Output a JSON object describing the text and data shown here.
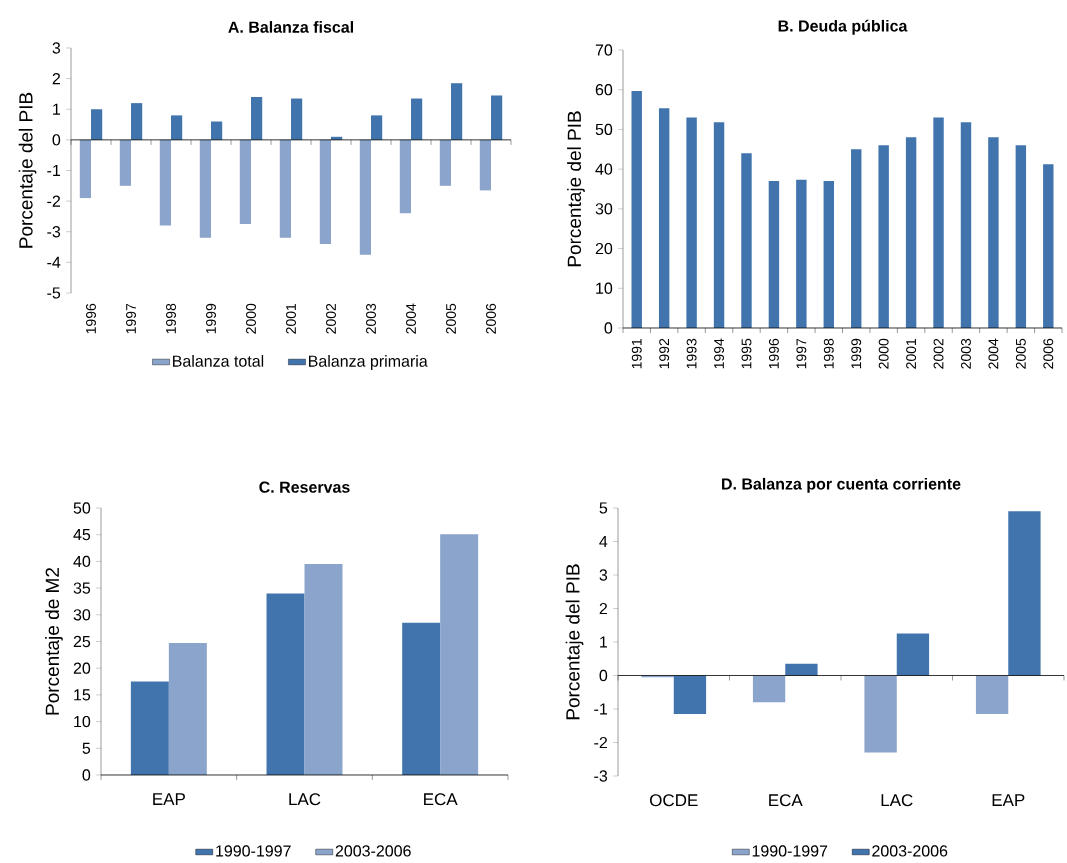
{
  "chart_data": [
    {
      "type": "bar",
      "title": "A. Balanza fiscal",
      "ylabel": "Porcentaje del PIB",
      "categories": [
        "1996",
        "1997",
        "1998",
        "1999",
        "2000",
        "2001",
        "2002",
        "2003",
        "2004",
        "2005",
        "2006"
      ],
      "series": [
        {
          "name": "Balanza total",
          "color": "#8aa4cc",
          "values": [
            -1.9,
            -1.5,
            -2.8,
            -3.2,
            -2.75,
            -3.2,
            -3.4,
            -3.75,
            -2.4,
            -1.5,
            -1.65
          ]
        },
        {
          "name": "Balanza primaria",
          "color": "#4174ad",
          "values": [
            1.0,
            1.2,
            0.8,
            0.6,
            1.4,
            1.35,
            0.1,
            0.8,
            1.35,
            1.85,
            1.45
          ]
        }
      ],
      "ylim": [
        -5,
        3
      ],
      "yticks": [
        -5,
        -4,
        -3,
        -2,
        -1,
        0,
        1,
        2,
        3
      ],
      "legend": "bottom"
    },
    {
      "type": "bar",
      "title": "B. Deuda pública",
      "ylabel": "Porcentaje del PIB",
      "categories": [
        "1991",
        "1992",
        "1993",
        "1994",
        "1995",
        "1996",
        "1997",
        "1998",
        "1999",
        "2000",
        "2001",
        "2002",
        "2003",
        "2004",
        "2005",
        "2006"
      ],
      "series": [
        {
          "color": "#4174ad",
          "values": [
            59.7,
            55.3,
            53,
            51.8,
            44,
            37,
            37.3,
            37,
            45,
            46,
            48,
            53,
            51.8,
            48,
            46,
            41.2
          ]
        }
      ],
      "ylim": [
        0,
        70
      ],
      "yticks": [
        0,
        10,
        20,
        30,
        40,
        50,
        60,
        70
      ]
    },
    {
      "type": "bar",
      "title": "C. Reservas",
      "ylabel": "Porcentaje de M2",
      "categories": [
        "EAP",
        "LAC",
        "ECA"
      ],
      "series": [
        {
          "name": "1990-1997",
          "color": "#4174ad",
          "values": [
            17.5,
            34,
            28.5
          ]
        },
        {
          "name": "2003-2006",
          "color": "#8aa4cc",
          "values": [
            24.7,
            39.5,
            45.1
          ]
        }
      ],
      "ylim": [
        0,
        50
      ],
      "yticks": [
        0,
        5,
        10,
        15,
        20,
        25,
        30,
        35,
        40,
        45,
        50
      ],
      "legend": "bottom"
    },
    {
      "type": "bar",
      "title": "D. Balanza por cuenta corriente",
      "ylabel": "Porcentaje del PIB",
      "categories": [
        "OCDE",
        "ECA",
        "LAC",
        "EAP"
      ],
      "series": [
        {
          "name": "1990-1997",
          "color": "#8aa4cc",
          "values": [
            -0.05,
            -0.8,
            -2.3,
            -1.15
          ]
        },
        {
          "name": "2003-2006",
          "color": "#4174ad",
          "values": [
            -1.15,
            0.35,
            1.25,
            4.9
          ]
        }
      ],
      "ylim": [
        -3,
        5
      ],
      "yticks": [
        -3,
        -2,
        -1,
        0,
        1,
        2,
        3,
        4,
        5
      ],
      "legend": "bottom"
    }
  ]
}
